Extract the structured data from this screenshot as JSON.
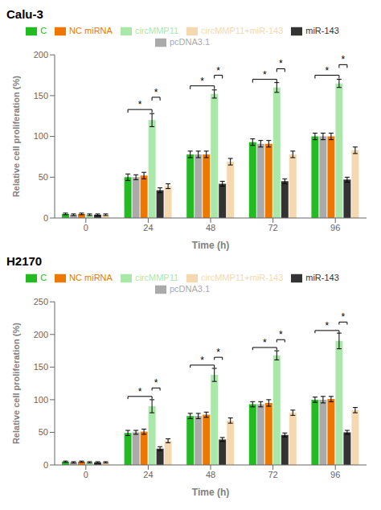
{
  "chart_data": [
    {
      "type": "bar",
      "title": "Calu-3",
      "x_label": "Time (h)",
      "y_label": "Relative cell proliferation (%)",
      "categories": [
        "0",
        "24",
        "48",
        "72",
        "96"
      ],
      "series": [
        {
          "name": "C",
          "color": "#22bb22",
          "values": [
            5,
            50,
            78,
            93,
            100
          ],
          "errors": [
            1,
            4,
            4,
            4,
            4
          ]
        },
        {
          "name": "pcDNA3.1",
          "color": "#aaaaaa",
          "values": [
            4,
            50,
            78,
            91,
            100
          ],
          "errors": [
            1,
            3,
            4,
            4,
            4
          ]
        },
        {
          "name": "NC miRNA",
          "color": "#ee7700",
          "values": [
            5,
            52,
            78,
            91,
            100
          ],
          "errors": [
            1,
            4,
            4,
            4,
            4
          ]
        },
        {
          "name": "circMMP11",
          "color": "#aae8aa",
          "values": [
            4,
            120,
            152,
            160,
            165
          ],
          "errors": [
            1,
            8,
            5,
            6,
            5
          ]
        },
        {
          "name": "miR-143",
          "color": "#333333",
          "values": [
            4,
            34,
            42,
            45,
            47
          ],
          "errors": [
            1,
            3,
            3,
            3,
            3
          ]
        },
        {
          "name": "circMMP11+miR-143",
          "color": "#f5d8b0",
          "values": [
            4,
            39,
            69,
            78,
            83
          ],
          "errors": [
            1,
            3,
            4,
            4,
            4
          ]
        }
      ],
      "ylim": [
        0,
        200
      ],
      "yticks": [
        0,
        50,
        100,
        150,
        200
      ],
      "grid": false,
      "legend": "top",
      "annotations": [
        {
          "text": "*",
          "category": "24",
          "from": "C",
          "to": "circMMP11",
          "y": 133
        },
        {
          "text": "*",
          "category": "24",
          "from": "circMMP11",
          "to": "miR-143",
          "y": 148
        },
        {
          "text": "*",
          "category": "48",
          "from": "C",
          "to": "circMMP11",
          "y": 162
        },
        {
          "text": "*",
          "category": "48",
          "from": "circMMP11",
          "to": "miR-143",
          "y": 175
        },
        {
          "text": "*",
          "category": "72",
          "from": "C",
          "to": "circMMP11",
          "y": 170
        },
        {
          "text": "*",
          "category": "72",
          "from": "circMMP11",
          "to": "miR-143",
          "y": 183
        },
        {
          "text": "*",
          "category": "96",
          "from": "C",
          "to": "circMMP11",
          "y": 175
        },
        {
          "text": "*",
          "category": "96",
          "from": "circMMP11",
          "to": "miR-143",
          "y": 188
        }
      ]
    },
    {
      "type": "bar",
      "title": "H2170",
      "x_label": "Time (h)",
      "y_label": "Relative cell proliferation (%)",
      "categories": [
        "0",
        "24",
        "48",
        "72",
        "96"
      ],
      "series": [
        {
          "name": "C",
          "color": "#22bb22",
          "values": [
            5,
            49,
            75,
            93,
            100
          ],
          "errors": [
            1,
            4,
            4,
            4,
            4
          ]
        },
        {
          "name": "pcDNA3.1",
          "color": "#aaaaaa",
          "values": [
            4,
            50,
            75,
            93,
            100
          ],
          "errors": [
            1,
            3,
            4,
            4,
            5
          ]
        },
        {
          "name": "NC miRNA",
          "color": "#ee7700",
          "values": [
            5,
            51,
            77,
            95,
            101
          ],
          "errors": [
            1,
            4,
            4,
            5,
            4
          ]
        },
        {
          "name": "circMMP11",
          "color": "#aae8aa",
          "values": [
            4,
            90,
            138,
            168,
            190
          ],
          "errors": [
            1,
            10,
            10,
            7,
            12
          ]
        },
        {
          "name": "miR-143",
          "color": "#333333",
          "values": [
            4,
            25,
            39,
            46,
            50
          ],
          "errors": [
            1,
            3,
            3,
            3,
            3
          ]
        },
        {
          "name": "circMMP11+miR-143",
          "color": "#f5d8b0",
          "values": [
            4,
            37,
            68,
            80,
            84
          ],
          "errors": [
            1,
            3,
            4,
            4,
            4
          ]
        }
      ],
      "ylim": [
        0,
        250
      ],
      "yticks": [
        0,
        50,
        100,
        150,
        200,
        250
      ],
      "grid": false,
      "legend": "top",
      "annotations": [
        {
          "text": "*",
          "category": "24",
          "from": "C",
          "to": "circMMP11",
          "y": 105
        },
        {
          "text": "*",
          "category": "24",
          "from": "circMMP11",
          "to": "miR-143",
          "y": 118
        },
        {
          "text": "*",
          "category": "48",
          "from": "C",
          "to": "circMMP11",
          "y": 153
        },
        {
          "text": "*",
          "category": "48",
          "from": "circMMP11",
          "to": "miR-143",
          "y": 165
        },
        {
          "text": "*",
          "category": "72",
          "from": "C",
          "to": "circMMP11",
          "y": 180
        },
        {
          "text": "*",
          "category": "72",
          "from": "circMMP11",
          "to": "miR-143",
          "y": 192
        },
        {
          "text": "*",
          "category": "96",
          "from": "C",
          "to": "circMMP11",
          "y": 206
        },
        {
          "text": "*",
          "category": "96",
          "from": "circMMP11",
          "to": "miR-143",
          "y": 219
        }
      ]
    }
  ]
}
